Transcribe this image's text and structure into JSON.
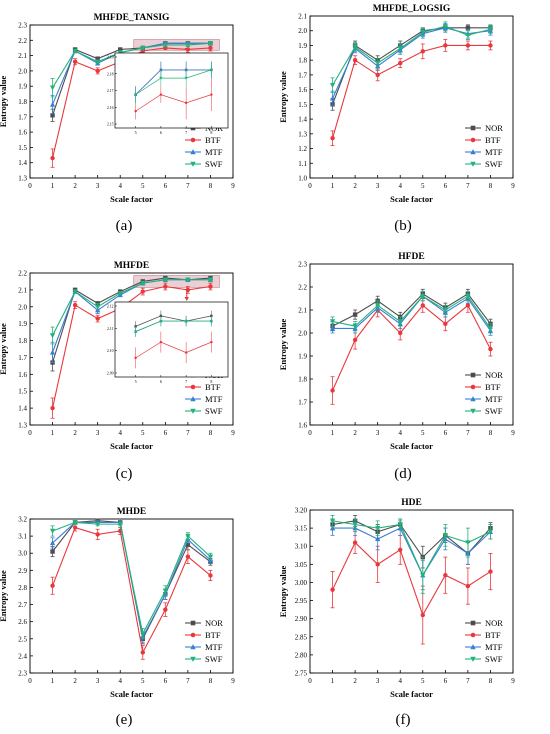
{
  "legend_series": [
    "NOR",
    "BTF",
    "MTF",
    "SWF"
  ],
  "colors": {
    "NOR": "#4d4d4d",
    "BTF": "#e8383d",
    "MTF": "#3a7fd5",
    "SWF": "#22b27a",
    "highlight": "#d9a7b0"
  },
  "panel_labels": [
    "(a)",
    "(b)",
    "(c)",
    "(d)",
    "(e)",
    "(f)"
  ],
  "chart_data": [
    {
      "type": "line",
      "title": "MHFDE_TANSIG",
      "xlabel": "Scale factor",
      "ylabel": "Entropy value",
      "x": [
        1,
        2,
        3,
        4,
        5,
        6,
        7,
        8
      ],
      "xlim": [
        0,
        9
      ],
      "xticks": [
        "0",
        "1",
        "2",
        "3",
        "4",
        "5",
        "6",
        "7",
        "8",
        "9"
      ],
      "ylim": [
        1.3,
        2.3
      ],
      "yticks": [
        "1.3",
        "1.4",
        "1.5",
        "1.6",
        "1.7",
        "1.8",
        "1.9",
        "2.0",
        "2.1",
        "2.2",
        "2.3"
      ],
      "legend_position": "bottom-right",
      "grid": false,
      "series": [
        {
          "name": "NOR",
          "values": [
            1.71,
            2.14,
            2.08,
            2.14,
            2.15,
            2.18,
            2.18,
            2.18
          ],
          "err": [
            0.04,
            0.01,
            0.01,
            0.01,
            0.01,
            0.01,
            0.01,
            0.01
          ]
        },
        {
          "name": "BTF",
          "values": [
            1.43,
            2.06,
            2.0,
            2.06,
            2.13,
            2.15,
            2.14,
            2.15
          ],
          "err": [
            0.06,
            0.02,
            0.02,
            0.02,
            0.01,
            0.01,
            0.02,
            0.02
          ]
        },
        {
          "name": "MTF",
          "values": [
            1.78,
            2.13,
            2.05,
            2.12,
            2.15,
            2.18,
            2.18,
            2.18
          ],
          "err": [
            0.06,
            0.01,
            0.01,
            0.01,
            0.01,
            0.01,
            0.01,
            0.01
          ]
        },
        {
          "name": "SWF",
          "values": [
            1.89,
            2.13,
            2.06,
            2.12,
            2.15,
            2.17,
            2.17,
            2.18
          ],
          "err": [
            0.06,
            0.01,
            0.01,
            0.01,
            0.01,
            0.01,
            0.01,
            0.01
          ]
        }
      ],
      "inset": {
        "xticks": [
          "5",
          "6",
          "7",
          "8"
        ],
        "yticks": [
          "2.15",
          "2.16",
          "2.17",
          "2.18",
          "2.19"
        ],
        "ylim": [
          2.15,
          2.19
        ]
      }
    },
    {
      "type": "line",
      "title": "MHFDE_LOGSIG",
      "xlabel": "Scale factor",
      "ylabel": "Entropy value",
      "x": [
        1,
        2,
        3,
        4,
        5,
        6,
        7,
        8
      ],
      "xlim": [
        0,
        9
      ],
      "xticks": [
        "0",
        "1",
        "2",
        "3",
        "4",
        "5",
        "6",
        "7",
        "8",
        "9"
      ],
      "ylim": [
        1.0,
        2.1
      ],
      "yticks": [
        "1.0",
        "1.1",
        "1.2",
        "1.3",
        "1.4",
        "1.5",
        "1.6",
        "1.7",
        "1.8",
        "1.9",
        "2.0",
        "2.1"
      ],
      "legend_position": "bottom-right",
      "grid": false,
      "series": [
        {
          "name": "NOR",
          "values": [
            1.5,
            1.9,
            1.8,
            1.9,
            2.0,
            2.02,
            2.02,
            2.02
          ],
          "err": [
            0.04,
            0.03,
            0.03,
            0.03,
            0.02,
            0.02,
            0.02,
            0.02
          ]
        },
        {
          "name": "BTF",
          "values": [
            1.27,
            1.8,
            1.7,
            1.78,
            1.86,
            1.9,
            1.9,
            1.9
          ],
          "err": [
            0.05,
            0.03,
            0.04,
            0.03,
            0.05,
            0.04,
            0.03,
            0.03
          ]
        },
        {
          "name": "MTF",
          "values": [
            1.54,
            1.88,
            1.76,
            1.87,
            1.98,
            2.02,
            1.98,
            2.0
          ],
          "err": [
            0.05,
            0.03,
            0.03,
            0.03,
            0.03,
            0.03,
            0.03,
            0.03
          ]
        },
        {
          "name": "SWF",
          "values": [
            1.63,
            1.89,
            1.78,
            1.88,
            1.99,
            2.03,
            1.97,
            2.01
          ],
          "err": [
            0.05,
            0.03,
            0.03,
            0.03,
            0.03,
            0.03,
            0.03,
            0.03
          ]
        }
      ]
    },
    {
      "type": "line",
      "title": "MHFDE",
      "xlabel": "Scale factor",
      "ylabel": "Entropy value",
      "x": [
        1,
        2,
        3,
        4,
        5,
        6,
        7,
        8
      ],
      "xlim": [
        0,
        9
      ],
      "xticks": [
        "0",
        "1",
        "2",
        "3",
        "4",
        "5",
        "6",
        "7",
        "8",
        "9"
      ],
      "ylim": [
        1.3,
        2.2
      ],
      "yticks": [
        "1.3",
        "1.4",
        "1.5",
        "1.6",
        "1.7",
        "1.8",
        "1.9",
        "2.0",
        "2.1",
        "2.2"
      ],
      "legend_position": "bottom-right",
      "grid": false,
      "series": [
        {
          "name": "NOR",
          "values": [
            1.67,
            2.1,
            2.02,
            2.09,
            2.15,
            2.17,
            2.16,
            2.17
          ],
          "err": [
            0.05,
            0.01,
            0.01,
            0.01,
            0.01,
            0.01,
            0.01,
            0.01
          ]
        },
        {
          "name": "BTF",
          "values": [
            1.4,
            2.01,
            1.93,
            1.99,
            2.09,
            2.12,
            2.1,
            2.12
          ],
          "err": [
            0.06,
            0.02,
            0.02,
            0.02,
            0.02,
            0.02,
            0.02,
            0.02
          ]
        },
        {
          "name": "MTF",
          "values": [
            1.73,
            2.09,
            1.98,
            2.07,
            2.14,
            2.16,
            2.16,
            2.16
          ],
          "err": [
            0.06,
            0.01,
            0.02,
            0.01,
            0.01,
            0.01,
            0.01,
            0.01
          ]
        },
        {
          "name": "SWF",
          "values": [
            1.83,
            2.09,
            2.0,
            2.08,
            2.14,
            2.16,
            2.16,
            2.16
          ],
          "err": [
            0.05,
            0.01,
            0.02,
            0.01,
            0.01,
            0.01,
            0.01,
            0.01
          ]
        }
      ],
      "inset": {
        "xticks": [
          "5",
          "6",
          "7",
          "8"
        ],
        "yticks": [
          "2.09",
          "2.10",
          "2.11",
          "2.12"
        ]
      }
    },
    {
      "type": "line",
      "title": "HFDE",
      "xlabel": "Scale factor",
      "ylabel": "Entropy value",
      "x": [
        1,
        2,
        3,
        4,
        5,
        6,
        7,
        8
      ],
      "xlim": [
        0,
        9
      ],
      "xticks": [
        "0",
        "1",
        "2",
        "3",
        "4",
        "5",
        "6",
        "7",
        "8",
        "9"
      ],
      "ylim": [
        1.6,
        2.3
      ],
      "yticks": [
        "1.6",
        "1.7",
        "1.8",
        "1.9",
        "2.0",
        "2.1",
        "2.2",
        "2.3"
      ],
      "legend_position": "bottom-right",
      "grid": false,
      "series": [
        {
          "name": "NOR",
          "values": [
            2.03,
            2.08,
            2.14,
            2.07,
            2.17,
            2.11,
            2.17,
            2.04
          ],
          "err": [
            0.02,
            0.02,
            0.02,
            0.02,
            0.02,
            0.02,
            0.02,
            0.02
          ]
        },
        {
          "name": "BTF",
          "values": [
            1.75,
            1.97,
            2.1,
            2.0,
            2.12,
            2.04,
            2.12,
            1.93
          ],
          "err": [
            0.06,
            0.04,
            0.03,
            0.03,
            0.03,
            0.03,
            0.03,
            0.03
          ]
        },
        {
          "name": "MTF",
          "values": [
            2.02,
            2.02,
            2.11,
            2.04,
            2.16,
            2.09,
            2.15,
            2.01
          ],
          "err": [
            0.02,
            0.02,
            0.02,
            0.02,
            0.02,
            0.02,
            0.02,
            0.02
          ]
        },
        {
          "name": "SWF",
          "values": [
            2.05,
            2.03,
            2.12,
            2.05,
            2.16,
            2.1,
            2.16,
            2.02
          ],
          "err": [
            0.02,
            0.02,
            0.02,
            0.02,
            0.02,
            0.02,
            0.02,
            0.02
          ]
        }
      ]
    },
    {
      "type": "line",
      "title": "MHDE",
      "xlabel": "Scale factor",
      "ylabel": "Entropy value",
      "x": [
        1,
        2,
        3,
        4,
        5,
        6,
        7,
        8
      ],
      "xlim": [
        0,
        9
      ],
      "xticks": [
        "0",
        "1",
        "2",
        "3",
        "4",
        "5",
        "6",
        "7",
        "8",
        "9"
      ],
      "ylim": [
        2.3,
        3.2
      ],
      "yticks": [
        "2.3",
        "2.4",
        "2.5",
        "2.6",
        "2.7",
        "2.8",
        "2.9",
        "3.0",
        "3.1",
        "3.2"
      ],
      "legend_position": "bottom-right",
      "grid": false,
      "series": [
        {
          "name": "NOR",
          "values": [
            3.01,
            3.18,
            3.19,
            3.18,
            2.5,
            2.76,
            3.05,
            2.95
          ],
          "err": [
            0.03,
            0.01,
            0.01,
            0.01,
            0.03,
            0.03,
            0.03,
            0.02
          ]
        },
        {
          "name": "BTF",
          "values": [
            2.81,
            3.15,
            3.11,
            3.13,
            2.42,
            2.67,
            2.98,
            2.87
          ],
          "err": [
            0.05,
            0.02,
            0.03,
            0.02,
            0.04,
            0.04,
            0.04,
            0.03
          ]
        },
        {
          "name": "MTF",
          "values": [
            3.06,
            3.18,
            3.18,
            3.18,
            2.51,
            2.76,
            3.08,
            2.96
          ],
          "err": [
            0.03,
            0.01,
            0.01,
            0.01,
            0.03,
            0.03,
            0.02,
            0.02
          ]
        },
        {
          "name": "SWF",
          "values": [
            3.13,
            3.18,
            3.17,
            3.17,
            2.53,
            2.78,
            3.1,
            2.98
          ],
          "err": [
            0.03,
            0.01,
            0.01,
            0.01,
            0.03,
            0.03,
            0.02,
            0.02
          ]
        }
      ]
    },
    {
      "type": "line",
      "title": "HDE",
      "xlabel": "Scale factor",
      "ylabel": "Entropy value",
      "x": [
        1,
        2,
        3,
        4,
        5,
        6,
        7,
        8
      ],
      "xlim": [
        0,
        9
      ],
      "xticks": [
        "0",
        "1",
        "2",
        "3",
        "4",
        "5",
        "6",
        "7",
        "8",
        "9"
      ],
      "ylim": [
        2.75,
        3.2
      ],
      "yticks": [
        "2.75",
        "2.80",
        "2.85",
        "2.90",
        "2.95",
        "3.00",
        "3.05",
        "3.10",
        "3.15",
        "3.20"
      ],
      "legend_position": "bottom-right",
      "grid": false,
      "series": [
        {
          "name": "NOR",
          "values": [
            3.16,
            3.17,
            3.14,
            3.16,
            3.07,
            3.13,
            3.08,
            3.15
          ],
          "err": [
            0.015,
            0.015,
            0.02,
            0.015,
            0.03,
            0.02,
            0.03,
            0.015
          ]
        },
        {
          "name": "BTF",
          "values": [
            2.98,
            3.11,
            3.05,
            3.09,
            2.91,
            3.02,
            2.99,
            3.03
          ],
          "err": [
            0.05,
            0.03,
            0.05,
            0.04,
            0.08,
            0.05,
            0.05,
            0.05
          ]
        },
        {
          "name": "MTF",
          "values": [
            3.15,
            3.15,
            3.12,
            3.15,
            3.02,
            3.12,
            3.08,
            3.14
          ],
          "err": [
            0.02,
            0.02,
            0.03,
            0.02,
            0.04,
            0.03,
            0.03,
            0.02
          ]
        },
        {
          "name": "SWF",
          "values": [
            3.17,
            3.16,
            3.15,
            3.16,
            3.02,
            3.13,
            3.11,
            3.14
          ],
          "err": [
            0.015,
            0.015,
            0.02,
            0.015,
            0.05,
            0.03,
            0.04,
            0.02
          ]
        }
      ]
    }
  ]
}
